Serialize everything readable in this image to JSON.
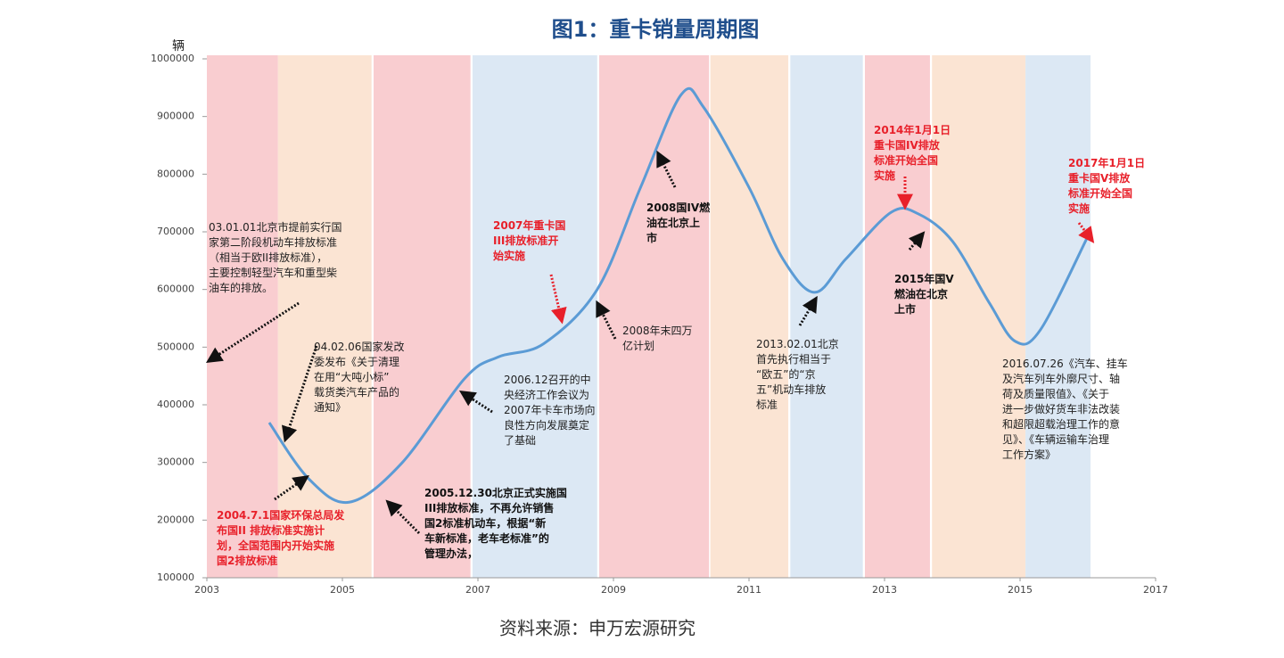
{
  "chart_data": {
    "type": "line",
    "title": "图1：重卡销量周期图",
    "y_label": "辆",
    "source": "资料来源：申万宏源研究",
    "xlim": [
      2003,
      2017
    ],
    "xticks": [
      2003,
      2005,
      2007,
      2009,
      2011,
      2013,
      2015,
      2017
    ],
    "ylim": [
      100000,
      1000000
    ],
    "yticks": [
      100000,
      200000,
      300000,
      400000,
      500000,
      600000,
      700000,
      800000,
      900000,
      1000000
    ],
    "bands": [
      {
        "from": 2003,
        "to": 2004.05,
        "color": "#f9cdd0"
      },
      {
        "from": 2004.05,
        "to": 2005.43,
        "color": "#fbe4d3"
      },
      {
        "from": 2005.46,
        "to": 2006.89,
        "color": "#f9cdd0"
      },
      {
        "from": 2006.92,
        "to": 2008.76,
        "color": "#dce8f4"
      },
      {
        "from": 2008.79,
        "to": 2010.41,
        "color": "#f9cdd0"
      },
      {
        "from": 2010.43,
        "to": 2011.58,
        "color": "#fbe4d3"
      },
      {
        "from": 2011.61,
        "to": 2012.68,
        "color": "#dce8f4"
      },
      {
        "from": 2012.71,
        "to": 2013.67,
        "color": "#f9cdd0"
      },
      {
        "from": 2013.7,
        "to": 2015.08,
        "color": "#fbe4d3"
      },
      {
        "from": 2015.08,
        "to": 2016.04,
        "color": "#dce8f4"
      }
    ],
    "series": [
      {
        "color": "#5b9bd5",
        "x": [
          2003.92,
          2004.5,
          2005.1,
          2005.87,
          2006.8,
          2007.3,
          2007.97,
          2008.76,
          2009.4,
          2010.0,
          2010.33,
          2011.0,
          2011.5,
          2011.97,
          2012.43,
          2013.1,
          2013.5,
          2014.0,
          2014.55,
          2014.93,
          2015.3,
          2016.0
        ],
        "values": [
          369000,
          272000,
          231000,
          298000,
          445000,
          483000,
          506000,
          600000,
          777000,
          938000,
          916000,
          777000,
          653000,
          595000,
          653000,
          734000,
          731000,
          684000,
          576000,
          510000,
          530000,
          692000
        ]
      }
    ],
    "annotations": [
      {
        "color": "#222",
        "bold": false,
        "lines": [
          "03.01.01北京市提前实行国",
          "家第二阶段机动车排放标准",
          "（相当于欧II排放标准），",
          "主要控制轻型汽车和重型柴",
          "油车的排放。"
        ]
      },
      {
        "color": "#222",
        "bold": false,
        "lines": [
          "04.02.06国家发改",
          "委发布《关于清理",
          "在用“大吨小标”",
          "载货类汽车产品的",
          "通知》"
        ]
      },
      {
        "color": "#e8202a",
        "bold": true,
        "lines": [
          "2004.7.1国家环保总局发",
          "布国II 排放标准实施计",
          "划，全国范围内开始实施",
          "国2排放标准"
        ]
      },
      {
        "color": "#111",
        "bold": true,
        "lines": [
          "2005.12.30北京正式实施国",
          "III排放标准，不再允许销售",
          "国2标准机动车，根据“新",
          "车新标准，老车老标准”的",
          "管理办法，"
        ]
      },
      {
        "color": "#222",
        "bold": false,
        "lines": [
          "2006.12召开的中",
          "央经济工作会议为",
          "2007年卡车市场向",
          "良性方向发展奠定",
          "了基础"
        ]
      },
      {
        "color": "#e8202a",
        "bold": true,
        "lines": [
          "2007年重卡国",
          "III排放标准开",
          "始实施"
        ]
      },
      {
        "color": "#222",
        "bold": false,
        "lines": [
          "2008年末四万",
          "亿计划"
        ]
      },
      {
        "color": "#111",
        "bold": true,
        "lines": [
          "2008国IV燃",
          "油在北京上",
          "市"
        ]
      },
      {
        "color": "#222",
        "bold": false,
        "lines": [
          "2013.02.01北京",
          "首先执行相当于",
          "“欧五”的“京",
          "五”机动车排放",
          "标准"
        ]
      },
      {
        "color": "#e8202a",
        "bold": true,
        "lines": [
          "2014年1月1日",
          "重卡国IV排放",
          "标准开始全国",
          "实施"
        ]
      },
      {
        "color": "#111",
        "bold": true,
        "lines": [
          "2015年国Ⅴ",
          "燃油在北京",
          "上市"
        ]
      },
      {
        "color": "#e8202a",
        "bold": true,
        "lines": [
          "2017年1月1日",
          "重卡国Ⅴ排放",
          "标准开始全国",
          "实施"
        ]
      },
      {
        "color": "#222",
        "bold": false,
        "lines": [
          "2016.07.26《汽车、挂车",
          "及汽车列车外廓尺寸、轴",
          "荷及质量限值》、《关于",
          "进一步做好货车非法改装",
          "和超限超载治理工作的意",
          "见》、《车辆运输车治理",
          "工作方案》"
        ]
      }
    ]
  }
}
